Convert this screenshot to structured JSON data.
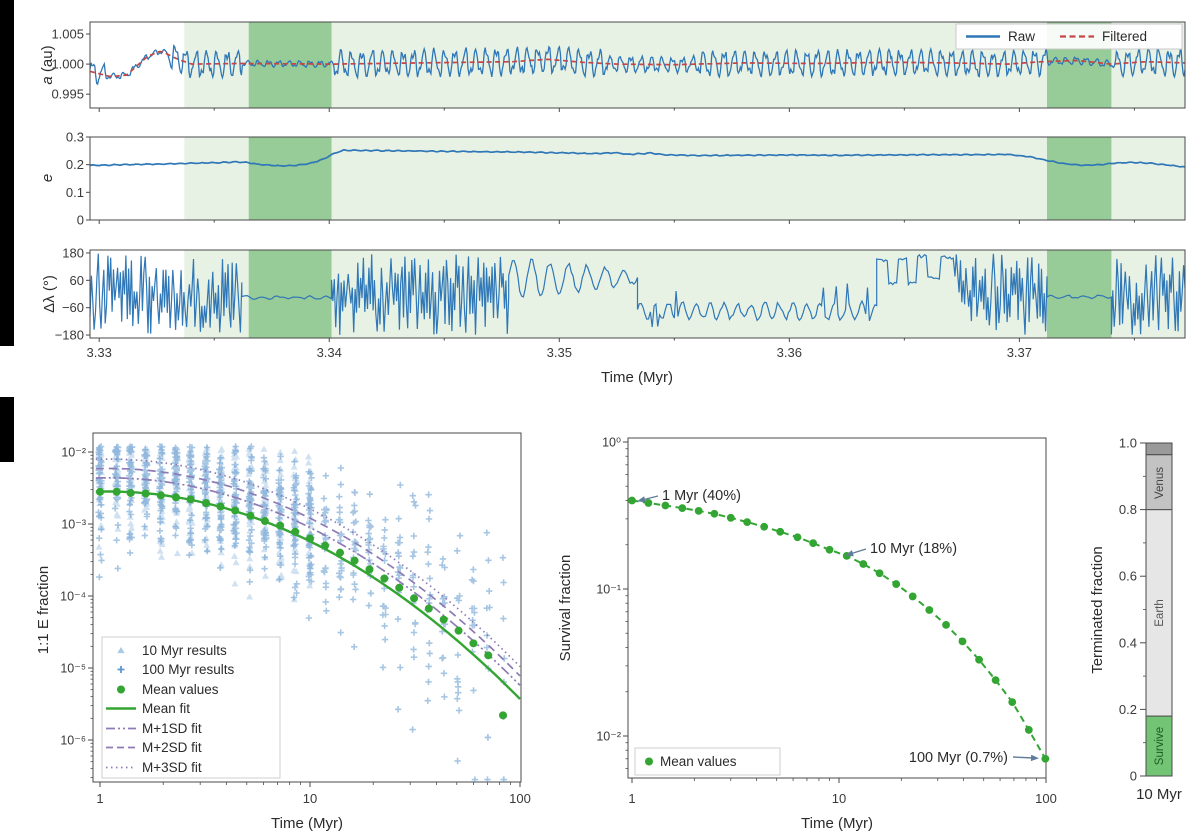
{
  "figure": {
    "background": "#ffffff",
    "letterbox_color": "#000000",
    "shading": {
      "light_green": "#e7f2e5",
      "dark_green": "#97cb97",
      "light_band": [
        3.3337,
        3.3772
      ],
      "dark_bands": [
        [
          3.3365,
          3.3401
        ],
        [
          3.3712,
          3.374
        ]
      ]
    },
    "time_axis": {
      "label": "Time (Myr)",
      "tick_labels": [
        "3.33",
        "3.34",
        "3.35",
        "3.36",
        "3.37"
      ],
      "tick_values": [
        3.33,
        3.34,
        3.35,
        3.36,
        3.37
      ],
      "range": [
        3.3296,
        3.3772
      ]
    }
  },
  "chart_data": [
    {
      "id": "semimajor-axis-panel",
      "type": "line",
      "ylabel": "a (au)",
      "ylabel_main": "a",
      "ylabel_unit": " (au)",
      "ytick_labels": [
        "1.005",
        "1.000",
        "0.995"
      ],
      "yticks": [
        1.005,
        1.0,
        0.995
      ],
      "ylim": [
        0.9927,
        1.007
      ],
      "series": [
        {
          "name": "Raw",
          "color": "#2f77b6",
          "style": "solid"
        },
        {
          "name": "Filtered",
          "color": "#c64545",
          "style": "dashed"
        }
      ],
      "legend_position": "top-right",
      "filtered_points": [
        [
          3.3296,
          0.9988
        ],
        [
          3.3305,
          0.9979
        ],
        [
          3.3312,
          0.9982
        ],
        [
          3.3321,
          1.0013
        ],
        [
          3.3327,
          1.0022
        ],
        [
          3.3333,
          1.001
        ],
        [
          3.334,
          1.0
        ],
        [
          3.336,
          1.0001
        ],
        [
          3.3402,
          1.0
        ],
        [
          3.344,
          1.0002
        ],
        [
          3.348,
          1.0004
        ],
        [
          3.3495,
          1.0008
        ],
        [
          3.351,
          1.0003
        ],
        [
          3.3525,
          1.0
        ],
        [
          3.355,
          0.9999
        ],
        [
          3.358,
          1.0002
        ],
        [
          3.361,
          1.0001
        ],
        [
          3.3645,
          1.0003
        ],
        [
          3.367,
          1.0002
        ],
        [
          3.3695,
          1.0
        ],
        [
          3.371,
          1.0004
        ],
        [
          3.3725,
          1.0006
        ],
        [
          3.374,
          1.0
        ],
        [
          3.3755,
          1.0004
        ],
        [
          3.3772,
          1.0002
        ]
      ],
      "raw_amplitude_segments": [
        [
          3.3296,
          3.3303,
          0.0018
        ],
        [
          3.3303,
          3.333,
          0.0005
        ],
        [
          3.333,
          3.3362,
          0.0022
        ],
        [
          3.3362,
          3.3402,
          0.0005
        ],
        [
          3.3402,
          3.352,
          0.0022
        ],
        [
          3.352,
          3.356,
          0.0013
        ],
        [
          3.356,
          3.3712,
          0.0021
        ],
        [
          3.3712,
          3.3742,
          0.0006
        ],
        [
          3.3742,
          3.3772,
          0.0022
        ]
      ],
      "raw_period_myr": 0.00045
    },
    {
      "id": "eccentricity-panel",
      "type": "line",
      "ylabel": "e",
      "ylabel_main": "e",
      "ylabel_unit": "",
      "ytick_labels": [
        "0.3",
        "0.2",
        "0.1",
        "0"
      ],
      "yticks": [
        0.3,
        0.2,
        0.1,
        0
      ],
      "ylim": [
        0,
        0.3
      ],
      "color": "#2f77b6",
      "points": [
        [
          3.3296,
          0.197
        ],
        [
          3.331,
          0.2
        ],
        [
          3.3325,
          0.202
        ],
        [
          3.3335,
          0.204
        ],
        [
          3.335,
          0.207
        ],
        [
          3.336,
          0.21
        ],
        [
          3.3365,
          0.207
        ],
        [
          3.337,
          0.2
        ],
        [
          3.3378,
          0.196
        ],
        [
          3.3385,
          0.197
        ],
        [
          3.3392,
          0.205
        ],
        [
          3.3398,
          0.222
        ],
        [
          3.3402,
          0.24
        ],
        [
          3.3406,
          0.252
        ],
        [
          3.342,
          0.251
        ],
        [
          3.345,
          0.248
        ],
        [
          3.348,
          0.246
        ],
        [
          3.35,
          0.243
        ],
        [
          3.3515,
          0.24
        ],
        [
          3.3525,
          0.243
        ],
        [
          3.353,
          0.237
        ],
        [
          3.354,
          0.242
        ],
        [
          3.3545,
          0.236
        ],
        [
          3.356,
          0.233
        ],
        [
          3.358,
          0.234
        ],
        [
          3.36,
          0.235
        ],
        [
          3.362,
          0.234
        ],
        [
          3.364,
          0.235
        ],
        [
          3.366,
          0.236
        ],
        [
          3.368,
          0.236
        ],
        [
          3.3695,
          0.237
        ],
        [
          3.3705,
          0.228
        ],
        [
          3.3712,
          0.215
        ],
        [
          3.372,
          0.203
        ],
        [
          3.3728,
          0.198
        ],
        [
          3.3735,
          0.2
        ],
        [
          3.3742,
          0.206
        ],
        [
          3.375,
          0.208
        ],
        [
          3.3757,
          0.205
        ],
        [
          3.3765,
          0.198
        ],
        [
          3.3772,
          0.191
        ]
      ]
    },
    {
      "id": "resonant-angle-panel",
      "type": "line",
      "ylabel": "Δλ (°)",
      "ylabel_main": "Δλ",
      "ylabel_unit": " (°)",
      "xlabel": "Time (Myr)",
      "ytick_labels": [
        "180",
        "60",
        "−60",
        "−180"
      ],
      "yticks": [
        180,
        60,
        -60,
        -180
      ],
      "ylim": [
        -193,
        193
      ],
      "xtick_labels": [
        "3.33",
        "3.34",
        "3.35",
        "3.36",
        "3.37"
      ],
      "xticks": [
        3.33,
        3.34,
        3.35,
        3.36,
        3.37
      ],
      "color": "#2f77b6",
      "segments": [
        {
          "t0": 3.3296,
          "t1": 3.3362,
          "mode": "circulating"
        },
        {
          "t0": 3.3362,
          "t1": 3.3401,
          "mode": "librating",
          "center": -15,
          "amp": 8
        },
        {
          "t0": 3.3401,
          "t1": 3.3478,
          "mode": "circulating"
        },
        {
          "t0": 3.3478,
          "t1": 3.3534,
          "mode": "oscillating",
          "center": 70,
          "amp0": 90,
          "amp1": 25,
          "period": 0.0008,
          "spikes": false
        },
        {
          "t0": 3.3534,
          "t1": 3.3638,
          "mode": "oscillating",
          "center": -75,
          "amp0": 35,
          "amp1": 35,
          "period": 0.0006,
          "spikes": true
        },
        {
          "t0": 3.3638,
          "t1": 3.3672,
          "mode": "square",
          "hi": 168,
          "lo": 45
        },
        {
          "t0": 3.3672,
          "t1": 3.3712,
          "mode": "circulating"
        },
        {
          "t0": 3.3712,
          "t1": 3.374,
          "mode": "librating",
          "center": -12,
          "amp": 8
        },
        {
          "t0": 3.374,
          "t1": 3.3772,
          "mode": "circulating"
        }
      ]
    },
    {
      "id": "one-to-one-e-fraction",
      "type": "scatter",
      "xlabel": "Time (Myr)",
      "ylabel": "1:1 E fraction",
      "xtick_labels": [
        "1",
        "10",
        "100"
      ],
      "xticks": [
        1,
        10,
        100
      ],
      "ytick_labels": [
        "10⁻²",
        "10⁻³",
        "10⁻⁴",
        "10⁻⁵",
        "10⁻⁶"
      ],
      "ytick_exponents": [
        -2,
        -3,
        -4,
        -5,
        -6
      ],
      "xscale": "log",
      "yscale": "log",
      "legend": {
        "items": [
          {
            "label": "10 Myr results",
            "marker": "triangle",
            "color": "#a9c9e5"
          },
          {
            "label": "100 Myr results",
            "marker": "plus",
            "color": "#5e98cc"
          },
          {
            "label": "Mean values",
            "marker": "dot",
            "color": "#33a532"
          },
          {
            "label": "Mean fit",
            "marker": "line-solid",
            "color": "#33a532"
          },
          {
            "label": "M+1SD fit",
            "marker": "line-dashdot",
            "color": "#8d7bb5"
          },
          {
            "label": "M+2SD fit",
            "marker": "line-dashed",
            "color": "#8d7bb5"
          },
          {
            "label": "M+3SD fit",
            "marker": "line-dotted",
            "color": "#8d7bb5"
          }
        ]
      },
      "mean_values": [
        [
          1,
          0.0028
        ],
        [
          1.2,
          0.0028
        ],
        [
          1.4,
          0.0027
        ],
        [
          1.65,
          0.00265
        ],
        [
          1.95,
          0.0025
        ],
        [
          2.3,
          0.00235
        ],
        [
          2.7,
          0.0022
        ],
        [
          3.2,
          0.00195
        ],
        [
          3.75,
          0.00175
        ],
        [
          4.4,
          0.00154
        ],
        [
          5.2,
          0.0013
        ],
        [
          6.1,
          0.0011
        ],
        [
          7.2,
          0.00095
        ],
        [
          8.5,
          0.00078
        ],
        [
          10,
          0.00063
        ],
        [
          11.8,
          0.0005
        ],
        [
          13.9,
          0.0004
        ],
        [
          16.3,
          0.00031
        ],
        [
          19.2,
          0.000235
        ],
        [
          22.6,
          0.000175
        ],
        [
          26.6,
          0.00013
        ],
        [
          31.3,
          9.3e-05
        ],
        [
          36.8,
          6.7e-05
        ],
        [
          43.3,
          4.7e-05
        ],
        [
          51,
          3.3e-05
        ],
        [
          60,
          2.2e-05
        ],
        [
          70.6,
          1.5e-05
        ],
        [
          83,
          2.2e-06
        ]
      ],
      "mean_fit_log10": {
        "a": -2.55,
        "b": 0.06,
        "c": -0.75
      },
      "sd_offsets": [
        0.19,
        0.32,
        0.45
      ],
      "scatter_generation": {
        "triangle_max_time": 10.5,
        "triangle_count": 30,
        "plus_count_base": 42,
        "sigma_base": 0.38,
        "sigma_growth": 0.55
      }
    },
    {
      "id": "survival-fraction",
      "type": "line",
      "xlabel": "Time (Myr)",
      "ylabel": "Survival fraction",
      "xtick_labels": [
        "1",
        "10",
        "100"
      ],
      "xticks": [
        1,
        10,
        100
      ],
      "ytick_labels": [
        "10⁰",
        "10⁻¹",
        "10⁻²"
      ],
      "ytick_exponents": [
        0,
        -1,
        -2
      ],
      "xscale": "log",
      "yscale": "log",
      "color": "#33a532",
      "line_style": "dashed",
      "mean_values": [
        [
          1,
          0.4
        ],
        [
          1.2,
          0.385
        ],
        [
          1.45,
          0.37
        ],
        [
          1.75,
          0.355
        ],
        [
          2.1,
          0.34
        ],
        [
          2.5,
          0.325
        ],
        [
          3,
          0.305
        ],
        [
          3.6,
          0.285
        ],
        [
          4.35,
          0.265
        ],
        [
          5.2,
          0.245
        ],
        [
          6.3,
          0.225
        ],
        [
          7.5,
          0.205
        ],
        [
          9,
          0.185
        ],
        [
          10.9,
          0.168
        ],
        [
          13.1,
          0.148
        ],
        [
          15.7,
          0.128
        ],
        [
          18.9,
          0.108
        ],
        [
          22.7,
          0.089
        ],
        [
          27.3,
          0.072
        ],
        [
          32.9,
          0.057
        ],
        [
          39.5,
          0.044
        ],
        [
          47.5,
          0.033
        ],
        [
          57.1,
          0.024
        ],
        [
          68.7,
          0.017
        ],
        [
          82.6,
          0.011
        ],
        [
          99.3,
          0.007
        ]
      ],
      "annotations": [
        {
          "text": "1 Myr (40%)",
          "t": 1,
          "value": 0.4
        },
        {
          "text": "10 Myr (18%)",
          "t": 10,
          "value": 0.18
        },
        {
          "text": "100 Myr (0.7%)",
          "t": 100,
          "value": 0.007
        }
      ],
      "legend": {
        "items": [
          {
            "label": "Mean values",
            "marker": "dot",
            "color": "#33a532"
          }
        ]
      }
    },
    {
      "id": "terminated-fraction-bar",
      "type": "bar",
      "ylabel": "Terminated fraction",
      "xlabel": "10 Myr",
      "ytick_labels": [
        "1.0",
        "0.8",
        "0.6",
        "0.4",
        "0.2",
        "0"
      ],
      "yticks": [
        1.0,
        0.8,
        0.6,
        0.4,
        0.2,
        0
      ],
      "ylim": [
        0,
        1
      ],
      "segments": [
        {
          "label": "Survive",
          "from": 0,
          "to": 0.18,
          "color": "#74c476",
          "text_color": "#1b5e20"
        },
        {
          "label": "Earth",
          "from": 0.18,
          "to": 0.8,
          "color": "#e6e6e6",
          "text_color": "#555555"
        },
        {
          "label": "Venus",
          "from": 0.8,
          "to": 0.965,
          "color": "#c3c3c3",
          "text_color": "#444444"
        },
        {
          "label": "",
          "from": 0.965,
          "to": 1.0,
          "color": "#9a9a9a",
          "text_color": "#333333"
        }
      ]
    }
  ]
}
